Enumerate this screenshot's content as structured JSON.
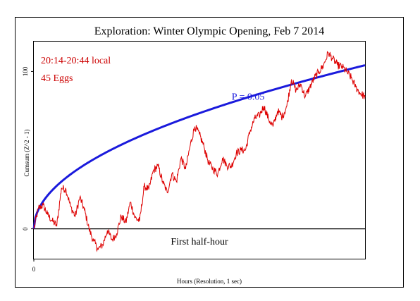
{
  "chart_data": {
    "type": "line",
    "title": "Exploration: Winter Olympic Opening, Feb 7 2014",
    "xlabel": "Hours (Resolution, 1 sec)",
    "ylabel": "Cumsum (Z^2 - 1)",
    "x_ticks": [
      {
        "value": 0,
        "label": "0"
      }
    ],
    "y_ticks": [
      {
        "value": 0,
        "label": "0"
      },
      {
        "value": 100,
        "label": "100"
      }
    ],
    "xlim": [
      0,
      1800
    ],
    "ylim": [
      -19,
      119
    ],
    "grid": false,
    "annotations": {
      "time_range": "20:14-20:44 local",
      "eggs": "45 Eggs",
      "p_label": "P = 0.05",
      "segment_label": "First half-hour"
    },
    "colors": {
      "data_line": "#dd0000",
      "envelope": "#1a1adc",
      "annotation_text": "#cc0000",
      "axis": "#000000"
    },
    "series": [
      {
        "type": "envelope",
        "formula": "1.645 * sqrt(2 * t)",
        "x_range": [
          0,
          1800
        ]
      },
      {
        "type": "cumsum",
        "x": [
          0,
          30,
          60,
          90,
          120,
          150,
          180,
          210,
          240,
          270,
          300,
          330,
          360,
          390,
          420,
          450,
          480,
          510,
          540,
          570,
          600,
          630,
          660,
          690,
          720,
          750,
          780,
          810,
          840,
          870,
          900,
          930,
          960,
          990,
          1020,
          1050,
          1080,
          1110,
          1140,
          1170,
          1200,
          1230,
          1260,
          1290,
          1320,
          1350,
          1380,
          1410,
          1440,
          1470,
          1500,
          1530,
          1560,
          1590,
          1620,
          1650,
          1680,
          1710,
          1740,
          1770,
          1800
        ],
        "y": [
          0,
          13,
          15,
          9,
          5,
          2,
          26,
          25,
          14,
          8,
          20,
          12,
          0,
          -8,
          -13,
          -10,
          -1,
          -7,
          -3,
          8,
          4,
          17,
          7,
          5,
          27,
          25,
          37,
          40,
          30,
          23,
          35,
          30,
          45,
          38,
          53,
          65,
          60,
          52,
          42,
          38,
          35,
          45,
          40,
          40,
          48,
          50,
          50,
          62,
          70,
          72,
          78,
          70,
          65,
          75,
          71,
          78,
          95,
          88,
          92,
          84,
          90
        ]
      }
    ],
    "cumsum_extra": {
      "x": [
        1830,
        1860,
        1890,
        1920,
        1950,
        1980,
        2010,
        2040,
        2070,
        2100,
        2130,
        2160
      ],
      "y": [
        96,
        100,
        104,
        112,
        108,
        104,
        103,
        100,
        96,
        90,
        86,
        84
      ]
    }
  }
}
